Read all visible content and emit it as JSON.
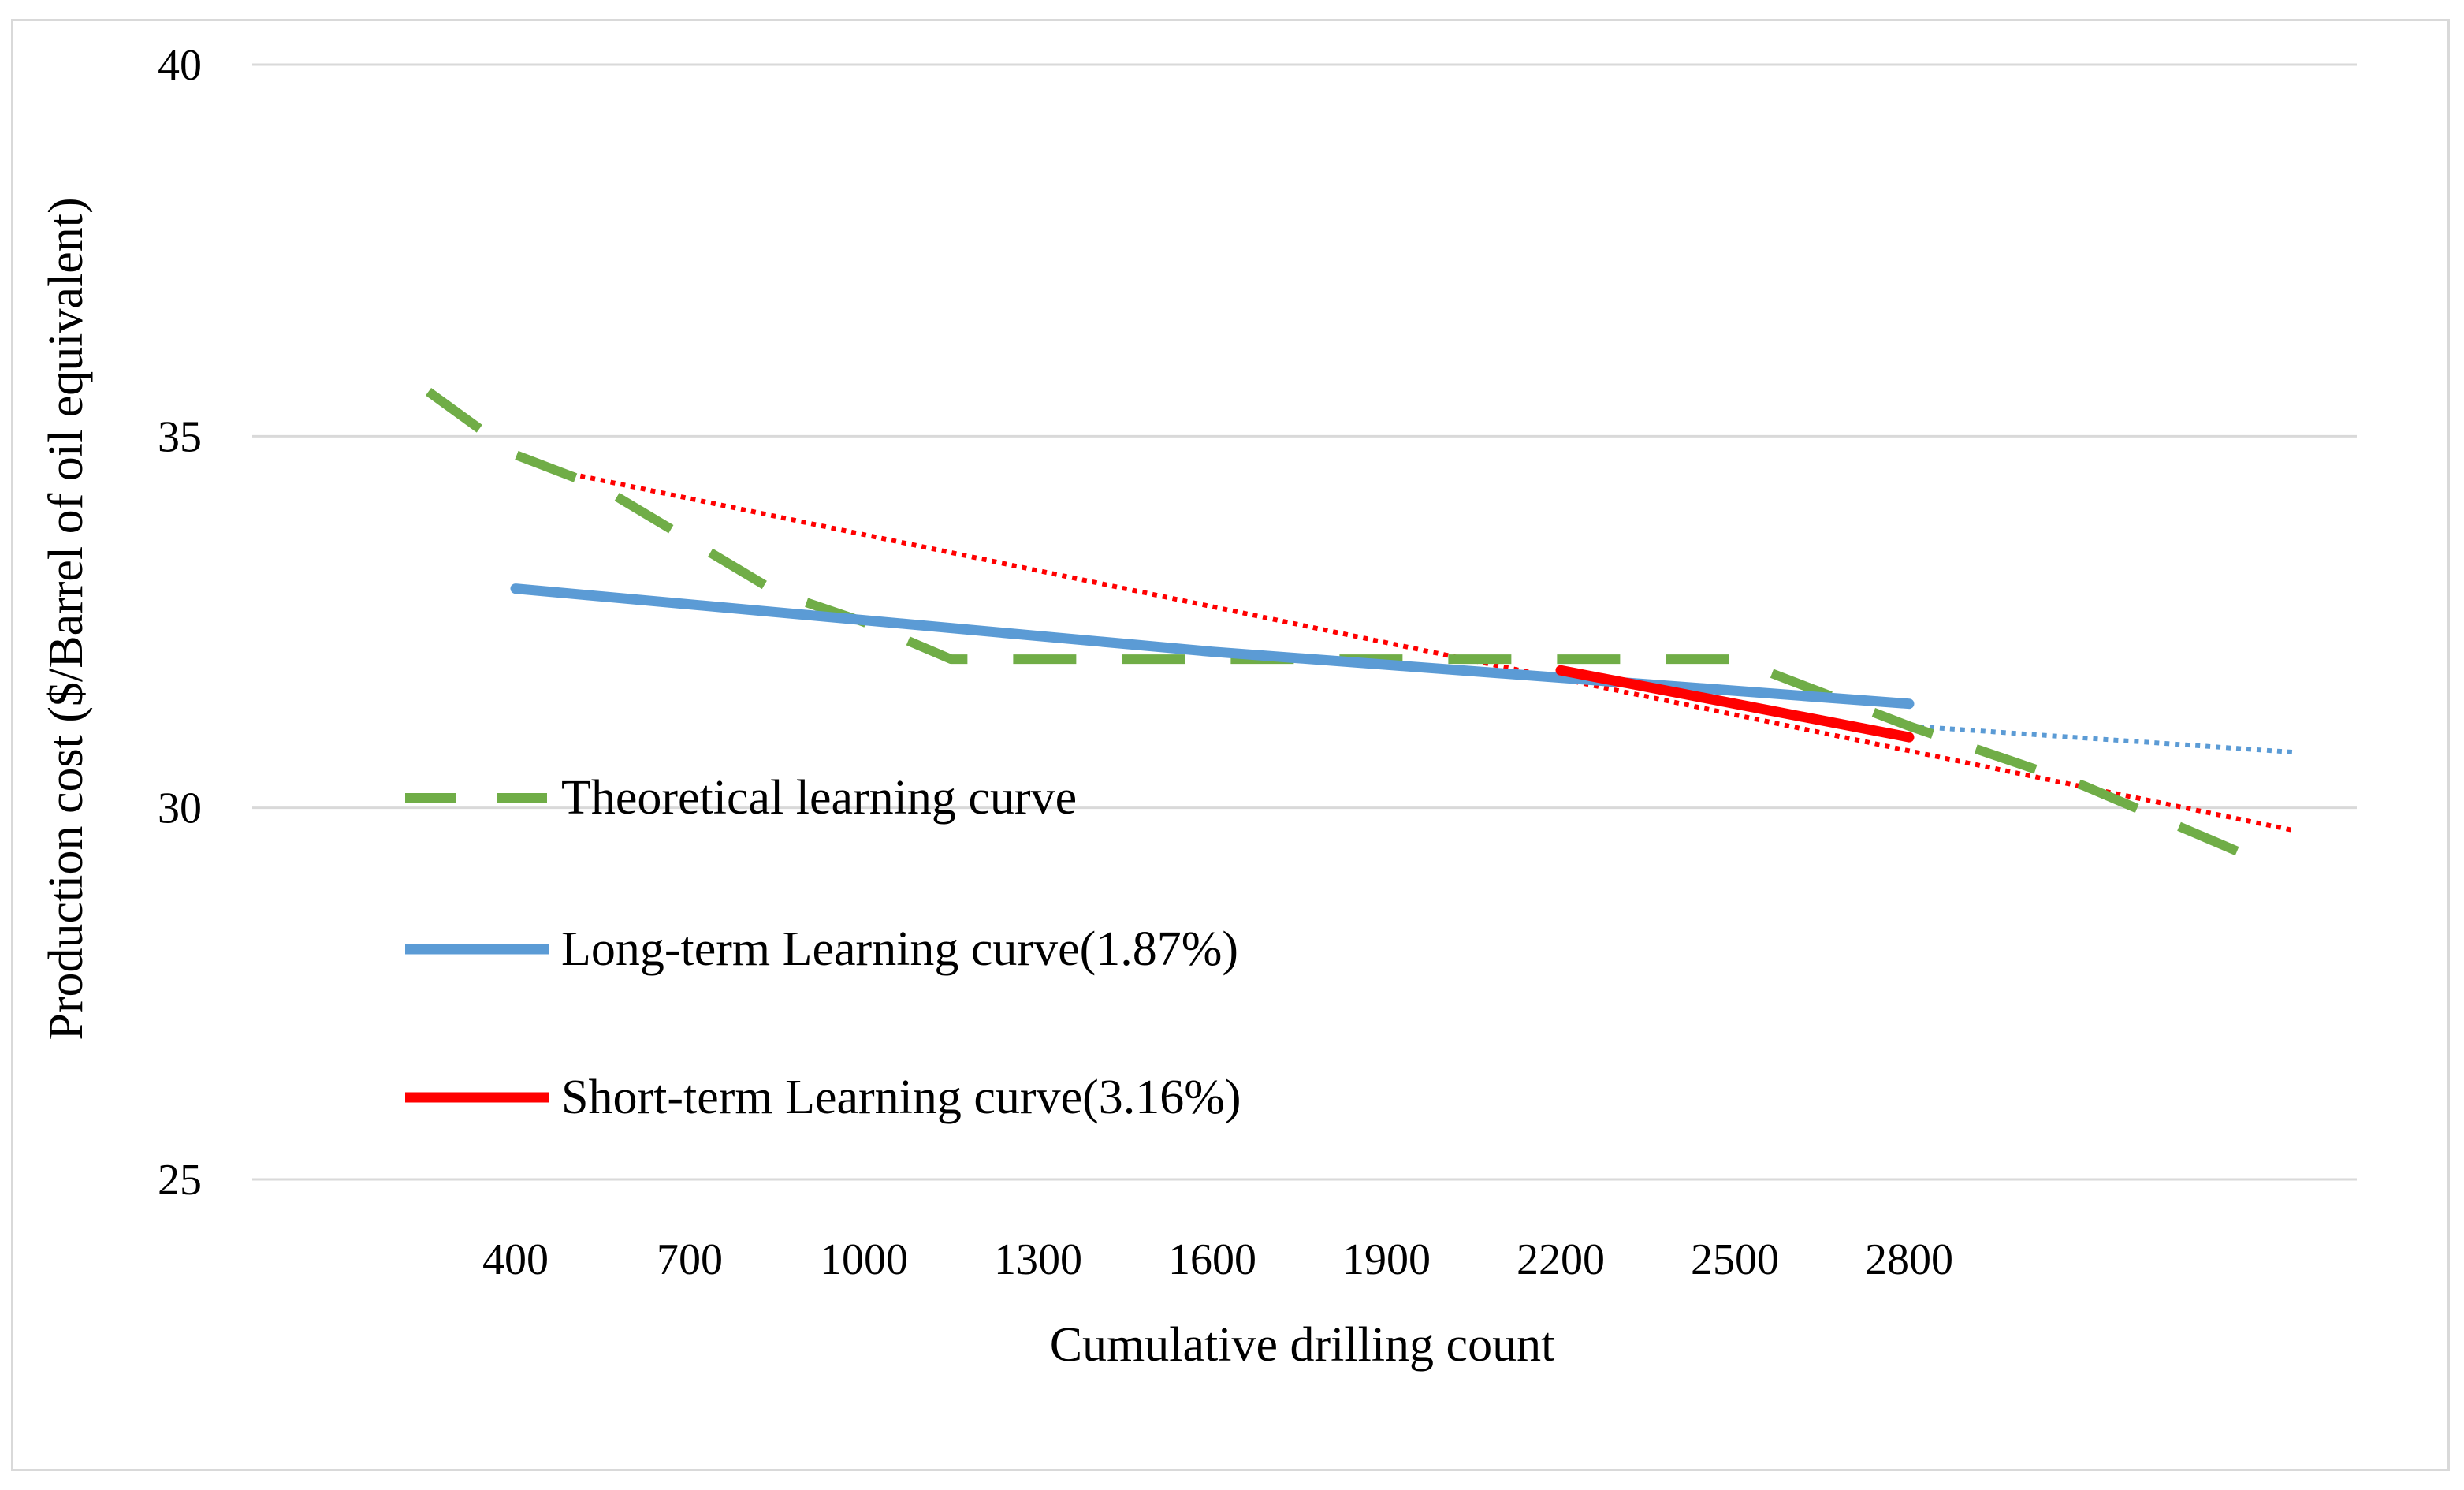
{
  "chart_data": {
    "type": "line",
    "title": "",
    "xlabel": "Cumulative drilling count",
    "ylabel": "Production cost ($/Barrel of oil equivalent)",
    "x_categories": [
      "400",
      "700",
      "1000",
      "1300",
      "1600",
      "1900",
      "2200",
      "2500",
      "2800"
    ],
    "x_range": [
      -1.0,
      10.0
    ],
    "ylim": [
      25,
      40
    ],
    "yticks": [
      25,
      30,
      35,
      40
    ],
    "grid": "horizontal",
    "legend_position": "center-left",
    "series": [
      {
        "name": "Theoretical learning curve",
        "style": "dashed",
        "color": "#70ad47",
        "points": [
          [
            -0.5,
            35.6
          ],
          [
            0.0,
            34.75
          ],
          [
            0.5,
            34.3
          ],
          [
            1.0,
            33.6
          ],
          [
            1.5,
            32.9
          ],
          [
            2.0,
            32.5
          ],
          [
            2.5,
            32.0
          ],
          [
            3.0,
            32.0
          ],
          [
            3.5,
            32.0
          ],
          [
            4.0,
            32.0
          ],
          [
            5.0,
            32.0
          ],
          [
            6.0,
            32.0
          ],
          [
            7.0,
            32.0
          ],
          [
            8.0,
            31.1
          ],
          [
            9.0,
            30.3
          ],
          [
            10.0,
            29.3
          ]
        ]
      },
      {
        "name": "Long-term Learning curve(1.87%)",
        "style": "solid",
        "color": "#5b9bd5",
        "points": [
          [
            0.0,
            32.95
          ],
          [
            4.0,
            32.1
          ],
          [
            8.0,
            31.4
          ]
        ]
      },
      {
        "name": "Long-term trend extension",
        "style": "dotted",
        "color": "#5b9bd5",
        "legend": false,
        "points": [
          [
            8.0,
            31.1
          ],
          [
            10.2,
            30.75
          ]
        ]
      },
      {
        "name": "Short-term Learning curve(3.16%)",
        "style": "solid",
        "color": "#ff0000",
        "points": [
          [
            6.0,
            31.85
          ],
          [
            8.0,
            30.95
          ]
        ]
      },
      {
        "name": "Short-term trend extension",
        "style": "dotted",
        "color": "#ff0000",
        "legend": false,
        "points": [
          [
            0.2,
            34.55
          ],
          [
            10.2,
            29.7
          ]
        ]
      }
    ]
  }
}
